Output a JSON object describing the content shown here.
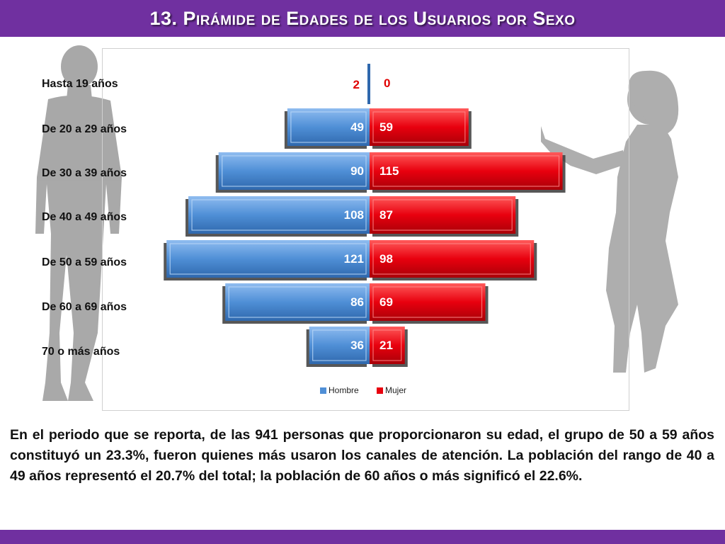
{
  "header": {
    "title": "13. Pirámide de Edades de los Usuarios por Sexo"
  },
  "colors": {
    "accent_bar": "#7030a0",
    "male": "#4f8fd6",
    "female": "#e8000e",
    "label_red": "#e00000"
  },
  "chart_data": {
    "type": "bar",
    "subtype": "population-pyramid",
    "title": "",
    "categories": [
      "Hasta 19 años",
      "De 20 a 29 años",
      "De 30 a 39 años",
      "De 40 a 49 años",
      "De 50 a 59 años",
      "De 60 a 69 años",
      "70 o más años"
    ],
    "series": [
      {
        "name": "Hombre",
        "values": [
          2,
          49,
          90,
          108,
          121,
          86,
          36
        ],
        "color": "#4f8fd6"
      },
      {
        "name": "Mujer",
        "values": [
          0,
          59,
          115,
          87,
          98,
          69,
          21
        ],
        "color": "#e8000e"
      }
    ],
    "data_labels": {
      "Hombre": [
        "2",
        "49",
        "90",
        "108",
        "121",
        "86",
        "36"
      ],
      "Mujer": [
        "0",
        "59",
        "115",
        "87",
        "98",
        "69",
        "21"
      ]
    },
    "legend": {
      "position": "bottom",
      "entries": [
        "Hombre",
        "Mujer"
      ]
    },
    "grid": false
  },
  "summary_text": "En el periodo que se reporta, de las 941 personas que proporcionaron su edad, el grupo de 50 a 59 años constituyó un 23.3%, fueron quienes más usaron los canales de atención. La población del rango de 40 a 49 años representó el 20.7% del total; la población de 60 años o más significó el 22.6%.",
  "decor": {
    "left_figure": "man-silhouette-icon",
    "right_figure": "woman-silhouette-icon"
  }
}
